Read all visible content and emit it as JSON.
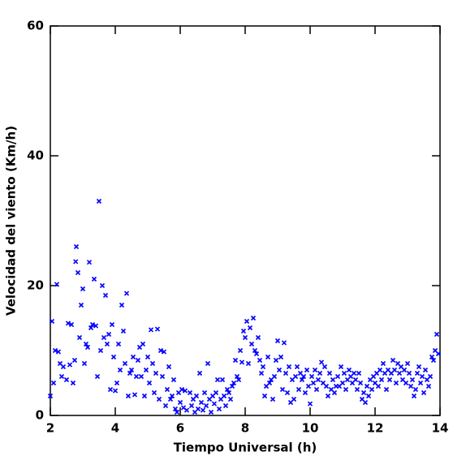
{
  "chart_data": {
    "type": "scatter",
    "x_label": "Tiempo Universal (h)",
    "y_label": "Velocidad del viento (Km/h)",
    "xlim": [
      2,
      14
    ],
    "ylim": [
      0,
      60
    ],
    "xticks": [
      2,
      4,
      6,
      8,
      10,
      12,
      14
    ],
    "yticks": [
      0,
      20,
      40,
      60
    ],
    "series": [
      {
        "color": "#0000ff",
        "x": [
          2.0,
          2.05,
          2.1,
          2.15,
          2.2,
          2.25,
          2.3,
          2.35,
          2.4,
          2.5,
          2.55,
          2.6,
          2.65,
          2.7,
          2.75,
          2.8,
          2.78,
          2.85,
          2.9,
          2.95,
          3.0,
          3.05,
          3.1,
          3.15,
          3.2,
          3.25,
          3.3,
          3.35,
          3.4,
          3.45,
          3.5,
          3.55,
          3.6,
          3.65,
          3.7,
          3.75,
          3.8,
          3.85,
          3.9,
          3.95,
          4.0,
          4.05,
          4.1,
          4.15,
          4.2,
          4.25,
          4.3,
          4.35,
          4.4,
          4.45,
          4.5,
          4.55,
          4.6,
          4.65,
          4.7,
          4.75,
          4.8,
          4.85,
          4.9,
          4.95,
          5.0,
          5.05,
          5.1,
          5.15,
          5.2,
          5.25,
          5.3,
          5.35,
          5.4,
          5.45,
          5.5,
          5.55,
          5.6,
          5.65,
          5.7,
          5.75,
          5.8,
          5.85,
          5.9,
          5.95,
          6.0,
          6.05,
          6.1,
          6.15,
          6.2,
          6.3,
          6.35,
          6.4,
          6.45,
          6.5,
          6.55,
          6.6,
          6.65,
          6.7,
          6.75,
          6.8,
          6.85,
          6.9,
          6.95,
          7.0,
          7.05,
          7.1,
          7.15,
          7.2,
          7.25,
          7.3,
          7.35,
          7.4,
          7.45,
          7.5,
          7.55,
          7.6,
          7.65,
          7.7,
          7.75,
          7.8,
          7.85,
          7.9,
          7.95,
          8.0,
          8.05,
          8.1,
          8.15,
          8.2,
          8.25,
          8.3,
          8.35,
          8.4,
          8.45,
          8.5,
          8.55,
          8.6,
          8.65,
          8.7,
          8.75,
          8.8,
          8.85,
          8.9,
          8.95,
          9.0,
          9.05,
          9.1,
          9.15,
          9.2,
          9.25,
          9.3,
          9.35,
          9.4,
          9.45,
          9.5,
          9.55,
          9.6,
          9.65,
          9.7,
          9.75,
          9.8,
          9.85,
          9.9,
          9.95,
          10.0,
          10.05,
          10.1,
          10.15,
          10.2,
          10.25,
          10.3,
          10.35,
          10.4,
          10.45,
          10.5,
          10.55,
          10.6,
          10.65,
          10.7,
          10.75,
          10.8,
          10.85,
          10.9,
          10.95,
          11.0,
          11.05,
          11.1,
          11.15,
          11.2,
          11.25,
          11.3,
          11.35,
          11.4,
          11.45,
          11.5,
          11.55,
          11.6,
          11.65,
          11.7,
          11.75,
          11.8,
          11.85,
          11.9,
          11.95,
          12.0,
          12.05,
          12.1,
          12.15,
          12.2,
          12.25,
          12.3,
          12.35,
          12.4,
          12.45,
          12.5,
          12.55,
          12.6,
          12.65,
          12.7,
          12.75,
          12.8,
          12.85,
          12.9,
          12.95,
          13.0,
          13.05,
          13.1,
          13.15,
          13.2,
          13.25,
          13.3,
          13.35,
          13.4,
          13.45,
          13.5,
          13.55,
          13.6,
          13.65,
          13.7,
          13.75,
          13.8,
          13.85,
          13.9,
          13.95
        ],
        "values": [
          3,
          14.5,
          5,
          10,
          20.2,
          9.8,
          8,
          6,
          7.5,
          5.5,
          14.2,
          7.8,
          14,
          5,
          8.5,
          26,
          23.7,
          22,
          12,
          17,
          19.5,
          8,
          11,
          10.5,
          23.6,
          13.5,
          14,
          21,
          13.8,
          6,
          33,
          10,
          20,
          12,
          18.5,
          11,
          12.5,
          4,
          14,
          9,
          3.8,
          5,
          11,
          7,
          17,
          13,
          8,
          18.8,
          3,
          6.5,
          7,
          9,
          3.2,
          6,
          8.5,
          10.5,
          6,
          11,
          3,
          7,
          9,
          5,
          13.2,
          8,
          3.5,
          6.5,
          13.3,
          2.5,
          10,
          6,
          9.8,
          1.5,
          4,
          7.5,
          2.5,
          3,
          5.5,
          1,
          0.5,
          3.5,
          2,
          4,
          1.2,
          3.8,
          0.8,
          3.5,
          1.5,
          2.5,
          0.5,
          3,
          1,
          6.5,
          2,
          0.8,
          3.5,
          1.5,
          8,
          2.5,
          0.5,
          3,
          1.8,
          3.5,
          5.5,
          1,
          2.5,
          5.5,
          3,
          1.5,
          4,
          3.5,
          2.5,
          4.5,
          5,
          8.5,
          6,
          5.5,
          10,
          8.2,
          13,
          12,
          14.5,
          8,
          13.5,
          11,
          15,
          10,
          9.5,
          12,
          8.5,
          6.5,
          7.5,
          3,
          4.5,
          9,
          5,
          5.5,
          2.5,
          6,
          8.5,
          11.5,
          7,
          9,
          4,
          11.2,
          6.5,
          3.5,
          7.5,
          2,
          5.5,
          2.5,
          6,
          7.5,
          4,
          6.5,
          5.5,
          6,
          3.5,
          7,
          4.5,
          1.8,
          6,
          5,
          7,
          4,
          5.5,
          6.5,
          8.2,
          5,
          7.5,
          4.5,
          3,
          6.5,
          4,
          5.5,
          3.5,
          4.5,
          6,
          4.5,
          7.5,
          5,
          6.5,
          4,
          5.5,
          7,
          6,
          5,
          6.5,
          5.5,
          4,
          6.5,
          5,
          2.5,
          3.5,
          2,
          4.5,
          3,
          5.5,
          4,
          6,
          5,
          6.5,
          4.5,
          7,
          5.5,
          8,
          6.5,
          4,
          7,
          5.5,
          6.5,
          8.5,
          7,
          5,
          8,
          6.5,
          7.5,
          5.5,
          7,
          5,
          8,
          6.5,
          4.5,
          5.5,
          3,
          4,
          6.5,
          7.5,
          5,
          6,
          3.5,
          7,
          5.5,
          4.5,
          6,
          9,
          8.5,
          10,
          12.5,
          9.5
        ]
      }
    ]
  }
}
